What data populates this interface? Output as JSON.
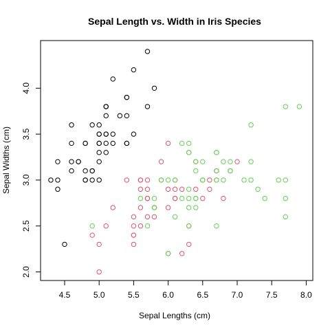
{
  "chart_data": {
    "type": "scatter",
    "title": "Sepal Length vs. Width in Iris Species",
    "xlabel": "Sepal Lengths (cm)",
    "ylabel": "Sepal Widths (cm)",
    "xlim": [
      4.2,
      8.0
    ],
    "ylim": [
      1.9,
      4.5
    ],
    "xticks": [
      "4.5",
      "5.0",
      "5.5",
      "6.0",
      "6.5",
      "7.0",
      "7.5",
      "8.0"
    ],
    "yticks": [
      "2.0",
      "2.5",
      "3.0",
      "3.5",
      "4.0"
    ],
    "grid": false,
    "legend": "none",
    "series": [
      {
        "color": "#000000",
        "x": [
          5.1,
          4.9,
          4.7,
          4.6,
          5.0,
          5.4,
          4.6,
          5.0,
          4.4,
          4.9,
          5.4,
          4.8,
          4.8,
          4.3,
          5.8,
          5.7,
          5.4,
          5.1,
          5.7,
          5.1,
          5.4,
          5.1,
          4.6,
          5.1,
          4.8,
          5.0,
          5.0,
          5.2,
          5.2,
          4.7,
          4.8,
          5.4,
          5.2,
          5.5,
          4.9,
          5.0,
          5.5,
          4.9,
          4.4,
          5.1,
          5.0,
          4.5,
          4.4,
          5.0,
          5.1,
          4.8,
          5.1,
          4.6,
          5.3,
          5.0
        ],
        "y": [
          3.5,
          3.0,
          3.2,
          3.1,
          3.6,
          3.9,
          3.4,
          3.4,
          2.9,
          3.1,
          3.7,
          3.4,
          3.0,
          3.0,
          4.0,
          4.4,
          3.9,
          3.5,
          3.8,
          3.8,
          3.4,
          3.7,
          3.6,
          3.3,
          3.4,
          3.0,
          3.4,
          3.5,
          3.4,
          3.2,
          3.1,
          3.4,
          4.1,
          4.2,
          3.1,
          3.2,
          3.5,
          3.6,
          3.0,
          3.4,
          3.5,
          2.3,
          3.2,
          3.5,
          3.8,
          3.0,
          3.8,
          3.2,
          3.7,
          3.3
        ]
      },
      {
        "color": "#df536b",
        "x": [
          7.0,
          6.4,
          6.9,
          5.5,
          6.5,
          5.7,
          6.3,
          4.9,
          6.6,
          5.2,
          5.0,
          5.9,
          6.0,
          6.1,
          5.6,
          6.7,
          5.6,
          5.8,
          6.2,
          5.6,
          5.9,
          6.1,
          6.3,
          6.1,
          6.4,
          6.6,
          6.8,
          6.7,
          6.0,
          5.7,
          5.5,
          5.5,
          5.8,
          6.0,
          5.4,
          6.0,
          6.7,
          6.3,
          5.6,
          5.5,
          5.5,
          6.1,
          5.8,
          5.0,
          5.6,
          5.7,
          5.7,
          6.2,
          5.1,
          5.7
        ],
        "y": [
          3.2,
          3.2,
          3.1,
          2.3,
          2.8,
          2.8,
          3.3,
          2.4,
          2.9,
          2.7,
          2.0,
          3.0,
          2.2,
          2.9,
          2.9,
          3.1,
          3.0,
          2.7,
          2.2,
          2.5,
          3.2,
          2.8,
          2.5,
          2.8,
          2.9,
          3.0,
          2.8,
          3.0,
          2.9,
          2.6,
          2.4,
          2.4,
          2.7,
          2.7,
          3.0,
          3.4,
          3.1,
          2.3,
          3.0,
          2.5,
          2.6,
          3.0,
          2.6,
          2.3,
          2.7,
          3.0,
          2.9,
          2.9,
          2.5,
          2.8
        ]
      },
      {
        "color": "#61d04f",
        "x": [
          6.3,
          5.8,
          7.1,
          6.3,
          6.5,
          7.6,
          4.9,
          7.3,
          6.7,
          7.2,
          6.5,
          6.4,
          6.8,
          5.7,
          5.8,
          6.4,
          6.5,
          7.7,
          7.7,
          6.0,
          6.9,
          5.6,
          7.7,
          6.3,
          6.7,
          7.2,
          6.2,
          6.1,
          6.4,
          7.2,
          7.4,
          7.9,
          6.4,
          6.3,
          6.1,
          7.7,
          6.3,
          6.4,
          6.0,
          6.9,
          6.7,
          6.9,
          5.8,
          6.8,
          6.7,
          6.7,
          6.3,
          6.5,
          6.2,
          5.9
        ],
        "y": [
          3.3,
          2.7,
          3.0,
          2.9,
          3.0,
          3.0,
          2.5,
          2.9,
          2.5,
          3.6,
          3.2,
          2.7,
          3.0,
          2.5,
          2.8,
          3.2,
          3.0,
          3.8,
          2.6,
          2.2,
          3.2,
          2.8,
          2.8,
          2.7,
          3.3,
          3.2,
          2.8,
          3.0,
          2.8,
          3.0,
          2.8,
          3.8,
          2.8,
          2.8,
          2.6,
          3.0,
          3.4,
          3.1,
          3.0,
          3.1,
          3.1,
          3.1,
          2.7,
          3.2,
          3.3,
          3.0,
          2.5,
          3.0,
          3.4,
          3.0
        ]
      }
    ]
  }
}
